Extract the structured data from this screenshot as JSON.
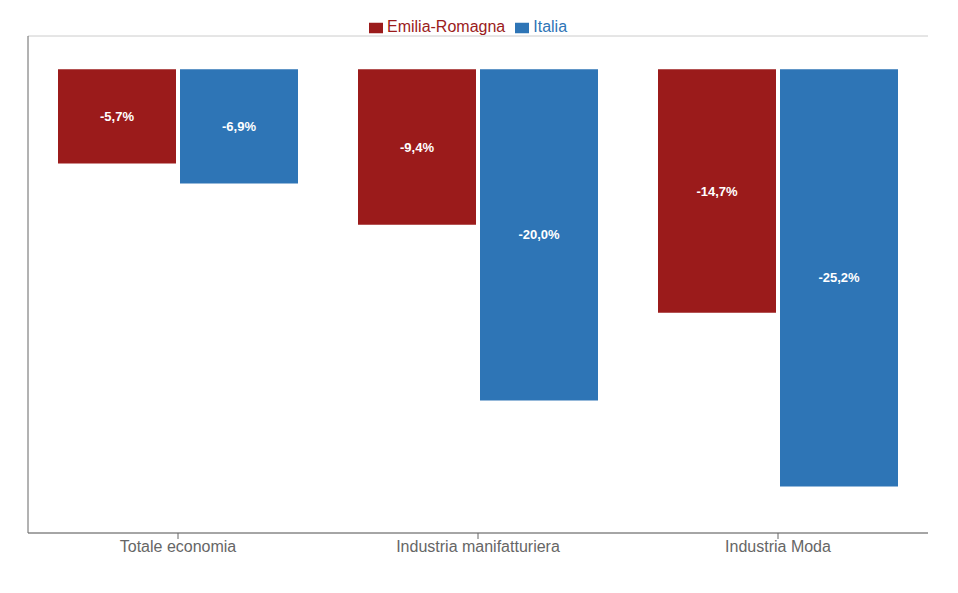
{
  "chart_data": {
    "type": "bar",
    "categories": [
      "Totale economia",
      "Industria manifatturiera",
      "Industria Moda"
    ],
    "series": [
      {
        "name": "Emilia-Romagna",
        "color": "#9B1B1B",
        "values": [
          -5.7,
          -9.4,
          -14.7
        ],
        "value_labels": [
          "-5,7%",
          "-9,4%",
          "-14,7%"
        ]
      },
      {
        "name": "Italia",
        "color": "#2E75B6",
        "values": [
          -6.9,
          -20.0,
          -25.2
        ],
        "value_labels": [
          "-6,9%",
          "-20,0%",
          "-25,2%"
        ]
      }
    ],
    "ylim": [
      -28,
      2
    ],
    "yticks": [
      0,
      -5,
      -10,
      -15,
      -20,
      -25
    ],
    "grid": true,
    "legend": "top",
    "data_labels": true,
    "tick_labels": "x"
  }
}
